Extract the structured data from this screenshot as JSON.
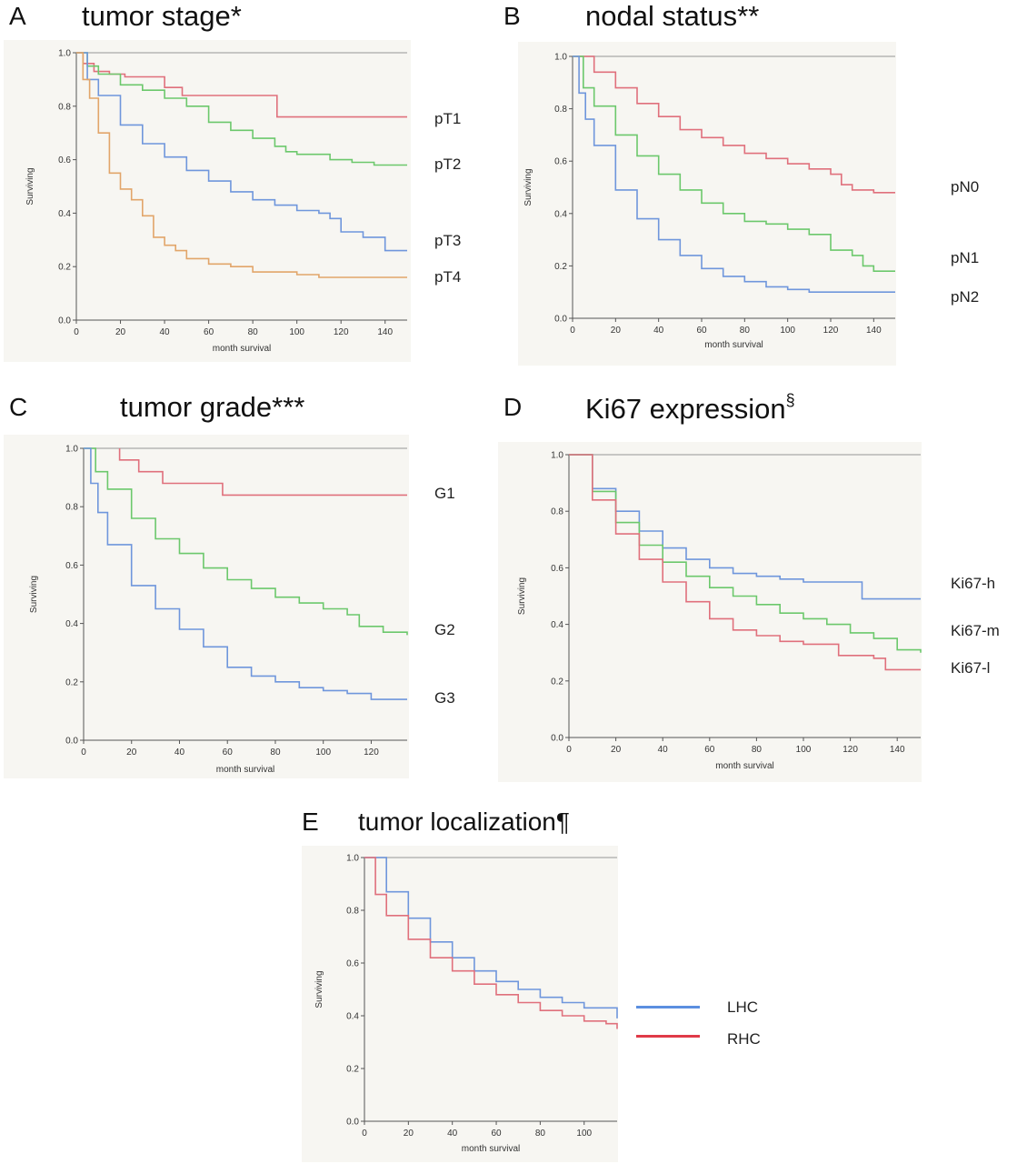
{
  "chart_data": [
    {
      "id": "A",
      "type": "line",
      "letter": "A",
      "title": "tumor stage",
      "title_mark": "*",
      "xlabel": "month survival",
      "ylabel": "Surviving",
      "xlim": [
        0,
        150
      ],
      "ylim": [
        0,
        1
      ],
      "xticks": [
        0,
        20,
        40,
        60,
        80,
        100,
        120,
        140
      ],
      "yticks": [
        0.0,
        0.2,
        0.4,
        0.6,
        0.8,
        1.0
      ],
      "series": [
        {
          "name": "pT1",
          "color": "#e0707c",
          "points": [
            [
              0,
              1.0
            ],
            [
              3,
              0.96
            ],
            [
              8,
              0.93
            ],
            [
              15,
              0.92
            ],
            [
              22,
              0.91
            ],
            [
              32,
              0.91
            ],
            [
              40,
              0.87
            ],
            [
              48,
              0.84
            ],
            [
              60,
              0.84
            ],
            [
              89,
              0.84
            ],
            [
              91,
              0.76
            ],
            [
              150,
              0.76
            ]
          ]
        },
        {
          "name": "pT2",
          "color": "#6cc86c",
          "points": [
            [
              0,
              1.0
            ],
            [
              5,
              0.95
            ],
            [
              10,
              0.92
            ],
            [
              20,
              0.88
            ],
            [
              30,
              0.86
            ],
            [
              40,
              0.83
            ],
            [
              50,
              0.8
            ],
            [
              60,
              0.74
            ],
            [
              70,
              0.71
            ],
            [
              80,
              0.68
            ],
            [
              90,
              0.65
            ],
            [
              95,
              0.63
            ],
            [
              100,
              0.62
            ],
            [
              112,
              0.62
            ],
            [
              115,
              0.6
            ],
            [
              125,
              0.59
            ],
            [
              135,
              0.58
            ],
            [
              150,
              0.58
            ]
          ]
        },
        {
          "name": "pT3",
          "color": "#6f96dc",
          "points": [
            [
              0,
              1.0
            ],
            [
              5,
              0.9
            ],
            [
              10,
              0.84
            ],
            [
              20,
              0.73
            ],
            [
              30,
              0.66
            ],
            [
              40,
              0.61
            ],
            [
              50,
              0.56
            ],
            [
              60,
              0.52
            ],
            [
              70,
              0.48
            ],
            [
              80,
              0.45
            ],
            [
              90,
              0.43
            ],
            [
              100,
              0.41
            ],
            [
              110,
              0.4
            ],
            [
              115,
              0.38
            ],
            [
              120,
              0.33
            ],
            [
              130,
              0.31
            ],
            [
              140,
              0.26
            ],
            [
              150,
              0.26
            ]
          ]
        },
        {
          "name": "pT4",
          "color": "#e2a56a",
          "points": [
            [
              0,
              1.0
            ],
            [
              3,
              0.9
            ],
            [
              6,
              0.83
            ],
            [
              10,
              0.7
            ],
            [
              15,
              0.55
            ],
            [
              20,
              0.49
            ],
            [
              25,
              0.45
            ],
            [
              30,
              0.39
            ],
            [
              35,
              0.31
            ],
            [
              40,
              0.28
            ],
            [
              45,
              0.26
            ],
            [
              50,
              0.23
            ],
            [
              60,
              0.21
            ],
            [
              70,
              0.2
            ],
            [
              80,
              0.18
            ],
            [
              100,
              0.17
            ],
            [
              110,
              0.16
            ],
            [
              150,
              0.16
            ]
          ]
        }
      ]
    },
    {
      "id": "B",
      "type": "line",
      "letter": "B",
      "title": "nodal status",
      "title_mark": "**",
      "xlabel": "month survival",
      "ylabel": "Surviving",
      "xlim": [
        0,
        150
      ],
      "ylim": [
        0,
        1
      ],
      "xticks": [
        0,
        20,
        40,
        60,
        80,
        100,
        120,
        140
      ],
      "yticks": [
        0.0,
        0.2,
        0.4,
        0.6,
        0.8,
        1.0
      ],
      "series": [
        {
          "name": "pN0",
          "color": "#e0707c",
          "points": [
            [
              0,
              1.0
            ],
            [
              10,
              0.94
            ],
            [
              20,
              0.88
            ],
            [
              30,
              0.82
            ],
            [
              40,
              0.77
            ],
            [
              50,
              0.72
            ],
            [
              60,
              0.69
            ],
            [
              70,
              0.66
            ],
            [
              80,
              0.63
            ],
            [
              90,
              0.61
            ],
            [
              100,
              0.59
            ],
            [
              110,
              0.57
            ],
            [
              120,
              0.55
            ],
            [
              125,
              0.51
            ],
            [
              130,
              0.49
            ],
            [
              140,
              0.48
            ],
            [
              150,
              0.48
            ]
          ]
        },
        {
          "name": "pN1",
          "color": "#6cc86c",
          "points": [
            [
              0,
              1.0
            ],
            [
              5,
              0.88
            ],
            [
              10,
              0.81
            ],
            [
              20,
              0.7
            ],
            [
              30,
              0.62
            ],
            [
              40,
              0.55
            ],
            [
              50,
              0.49
            ],
            [
              60,
              0.44
            ],
            [
              70,
              0.4
            ],
            [
              80,
              0.37
            ],
            [
              90,
              0.36
            ],
            [
              100,
              0.34
            ],
            [
              110,
              0.32
            ],
            [
              120,
              0.26
            ],
            [
              130,
              0.24
            ],
            [
              135,
              0.2
            ],
            [
              140,
              0.18
            ],
            [
              150,
              0.18
            ]
          ]
        },
        {
          "name": "pN2",
          "color": "#6f96dc",
          "points": [
            [
              0,
              1.0
            ],
            [
              3,
              0.86
            ],
            [
              6,
              0.76
            ],
            [
              10,
              0.66
            ],
            [
              20,
              0.49
            ],
            [
              30,
              0.38
            ],
            [
              40,
              0.3
            ],
            [
              50,
              0.24
            ],
            [
              60,
              0.19
            ],
            [
              70,
              0.16
            ],
            [
              80,
              0.14
            ],
            [
              90,
              0.12
            ],
            [
              100,
              0.11
            ],
            [
              110,
              0.1
            ],
            [
              140,
              0.1
            ],
            [
              150,
              0.1
            ]
          ]
        }
      ]
    },
    {
      "id": "C",
      "type": "line",
      "letter": "C",
      "title": "tumor grade",
      "title_mark": "***",
      "xlabel": "month survival",
      "ylabel": "Surviving",
      "xlim": [
        0,
        135
      ],
      "ylim": [
        0,
        1
      ],
      "xticks": [
        0,
        20,
        40,
        60,
        80,
        100,
        120
      ],
      "yticks": [
        0.0,
        0.2,
        0.4,
        0.6,
        0.8,
        1.0
      ],
      "series": [
        {
          "name": "G1",
          "color": "#e0707c",
          "points": [
            [
              15,
              1.0
            ],
            [
              15,
              0.96
            ],
            [
              23,
              0.92
            ],
            [
              33,
              0.88
            ],
            [
              48,
              0.88
            ],
            [
              58,
              0.84
            ],
            [
              135,
              0.84
            ]
          ]
        },
        {
          "name": "G2",
          "color": "#6cc86c",
          "points": [
            [
              0,
              1.0
            ],
            [
              5,
              0.92
            ],
            [
              10,
              0.86
            ],
            [
              20,
              0.76
            ],
            [
              30,
              0.69
            ],
            [
              40,
              0.64
            ],
            [
              50,
              0.59
            ],
            [
              60,
              0.55
            ],
            [
              70,
              0.52
            ],
            [
              80,
              0.49
            ],
            [
              90,
              0.47
            ],
            [
              100,
              0.45
            ],
            [
              110,
              0.43
            ],
            [
              115,
              0.39
            ],
            [
              125,
              0.37
            ],
            [
              135,
              0.36
            ]
          ]
        },
        {
          "name": "G3",
          "color": "#6f96dc",
          "points": [
            [
              0,
              1.0
            ],
            [
              3,
              0.88
            ],
            [
              6,
              0.78
            ],
            [
              10,
              0.67
            ],
            [
              20,
              0.53
            ],
            [
              30,
              0.45
            ],
            [
              40,
              0.38
            ],
            [
              50,
              0.32
            ],
            [
              60,
              0.25
            ],
            [
              70,
              0.22
            ],
            [
              80,
              0.2
            ],
            [
              90,
              0.18
            ],
            [
              100,
              0.17
            ],
            [
              110,
              0.16
            ],
            [
              120,
              0.14
            ],
            [
              135,
              0.14
            ]
          ]
        }
      ]
    },
    {
      "id": "D",
      "type": "line",
      "letter": "D",
      "title": "Ki67 expression",
      "title_mark": "§",
      "xlabel": "month survival",
      "ylabel": "Surviving",
      "xlim": [
        0,
        150
      ],
      "ylim": [
        0,
        1
      ],
      "xticks": [
        0,
        20,
        40,
        60,
        80,
        100,
        120,
        140
      ],
      "yticks": [
        0.0,
        0.2,
        0.4,
        0.6,
        0.8,
        1.0
      ],
      "series": [
        {
          "name": "Ki67-h",
          "color": "#6f96dc",
          "points": [
            [
              0,
              1.0
            ],
            [
              10,
              0.88
            ],
            [
              20,
              0.8
            ],
            [
              30,
              0.73
            ],
            [
              40,
              0.67
            ],
            [
              50,
              0.63
            ],
            [
              60,
              0.6
            ],
            [
              70,
              0.58
            ],
            [
              80,
              0.57
            ],
            [
              90,
              0.56
            ],
            [
              100,
              0.55
            ],
            [
              110,
              0.55
            ],
            [
              120,
              0.55
            ],
            [
              125,
              0.49
            ],
            [
              150,
              0.49
            ]
          ]
        },
        {
          "name": "Ki67-m",
          "color": "#6cc86c",
          "points": [
            [
              0,
              1.0
            ],
            [
              10,
              0.87
            ],
            [
              20,
              0.76
            ],
            [
              30,
              0.68
            ],
            [
              40,
              0.62
            ],
            [
              50,
              0.57
            ],
            [
              60,
              0.53
            ],
            [
              70,
              0.5
            ],
            [
              80,
              0.47
            ],
            [
              90,
              0.44
            ],
            [
              100,
              0.42
            ],
            [
              110,
              0.4
            ],
            [
              120,
              0.37
            ],
            [
              130,
              0.35
            ],
            [
              140,
              0.31
            ],
            [
              150,
              0.3
            ]
          ]
        },
        {
          "name": "Ki67-l",
          "color": "#e0707c",
          "points": [
            [
              0,
              1.0
            ],
            [
              10,
              0.84
            ],
            [
              20,
              0.72
            ],
            [
              30,
              0.63
            ],
            [
              40,
              0.55
            ],
            [
              50,
              0.48
            ],
            [
              60,
              0.42
            ],
            [
              70,
              0.38
            ],
            [
              80,
              0.36
            ],
            [
              90,
              0.34
            ],
            [
              100,
              0.33
            ],
            [
              110,
              0.33
            ],
            [
              115,
              0.29
            ],
            [
              130,
              0.28
            ],
            [
              135,
              0.24
            ],
            [
              150,
              0.24
            ]
          ]
        }
      ]
    },
    {
      "id": "E",
      "type": "line",
      "letter": "E",
      "title": "tumor localization",
      "title_mark": "¶",
      "xlabel": "month survival",
      "ylabel": "Surviving",
      "xlim": [
        0,
        115
      ],
      "ylim": [
        0,
        1
      ],
      "xticks": [
        0,
        20,
        40,
        60,
        80,
        100
      ],
      "yticks": [
        0.0,
        0.2,
        0.4,
        0.6,
        0.8,
        1.0
      ],
      "legend": [
        {
          "label": "LHC",
          "color": "#5b8fe0"
        },
        {
          "label": "RHC",
          "color": "#e03a48"
        }
      ],
      "series": [
        {
          "name": "LHC",
          "color": "#6f96dc",
          "points": [
            [
              0,
              1.0
            ],
            [
              10,
              0.87
            ],
            [
              20,
              0.77
            ],
            [
              30,
              0.68
            ],
            [
              40,
              0.62
            ],
            [
              50,
              0.57
            ],
            [
              60,
              0.53
            ],
            [
              70,
              0.5
            ],
            [
              80,
              0.47
            ],
            [
              90,
              0.45
            ],
            [
              100,
              0.43
            ],
            [
              110,
              0.43
            ],
            [
              115,
              0.39
            ]
          ]
        },
        {
          "name": "RHC",
          "color": "#e0707c",
          "points": [
            [
              0,
              1.0
            ],
            [
              5,
              0.86
            ],
            [
              10,
              0.78
            ],
            [
              20,
              0.69
            ],
            [
              30,
              0.62
            ],
            [
              40,
              0.57
            ],
            [
              50,
              0.52
            ],
            [
              60,
              0.48
            ],
            [
              70,
              0.45
            ],
            [
              80,
              0.42
            ],
            [
              90,
              0.4
            ],
            [
              100,
              0.38
            ],
            [
              110,
              0.37
            ],
            [
              115,
              0.35
            ]
          ]
        }
      ]
    }
  ]
}
